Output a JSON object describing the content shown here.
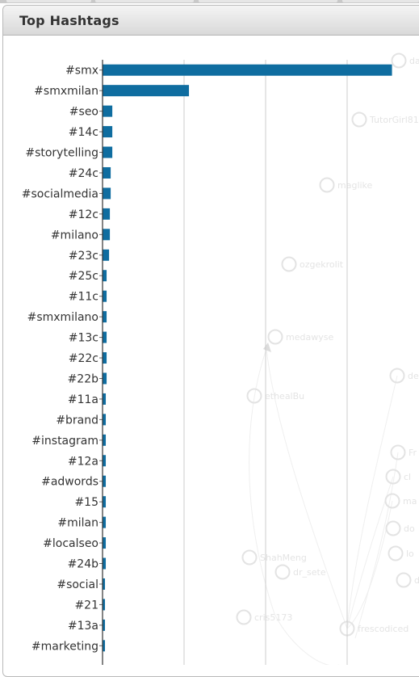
{
  "panel": {
    "title": "Top Hashtags"
  },
  "chart_data": {
    "type": "bar",
    "orientation": "horizontal",
    "title": "Top Hashtags",
    "categories": [
      "#smx",
      "#smxmilan",
      "#seo",
      "#14c",
      "#storytelling",
      "#24c",
      "#socialmedia",
      "#12c",
      "#milano",
      "#23c",
      "#25c",
      "#11c",
      "#smxmilano",
      "#13c",
      "#22c",
      "#22b",
      "#11a",
      "#brand",
      "#instagram",
      "#12a",
      "#adwords",
      "#15",
      "#milan",
      "#localseo",
      "#24b",
      "#social",
      "#21",
      "#13a",
      "#marketing"
    ],
    "values": [
      355,
      106,
      12,
      12,
      12,
      10,
      10,
      9,
      9,
      8,
      5,
      5,
      5,
      5,
      5,
      5,
      4,
      4,
      4,
      4,
      4,
      4,
      4,
      4,
      4,
      3,
      3,
      3,
      3
    ],
    "xlim": [
      0,
      390
    ],
    "grid_values": [
      100,
      200,
      300
    ],
    "bar_color": "#0f6da0",
    "grid": true,
    "legend": "none"
  },
  "background_graph": {
    "node_labels": [
      "dal",
      "TutorGirl81",
      "maglike",
      "ozgekrolit",
      "medawyse",
      "ethealBu",
      "ShahMeng",
      "dr_sete",
      "cris5173",
      "frescodiced",
      "de",
      "Fr",
      "cl",
      "ma",
      "do",
      "lo",
      "di"
    ]
  }
}
